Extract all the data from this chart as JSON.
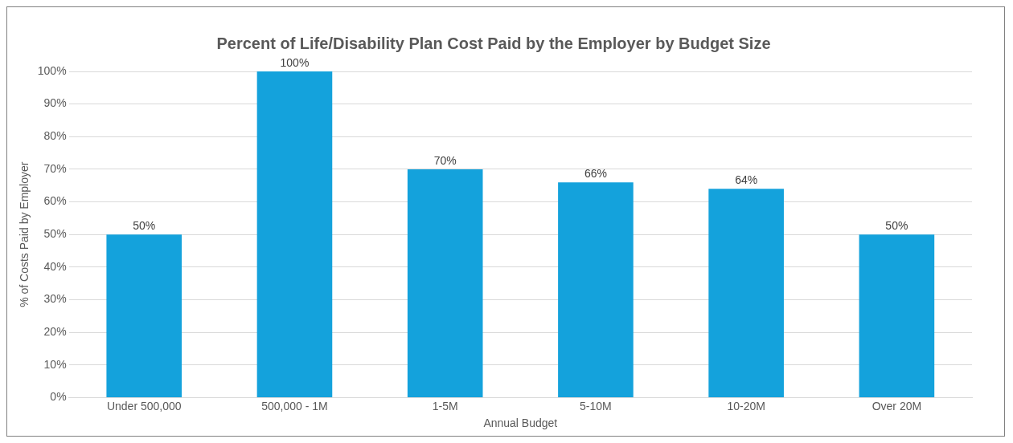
{
  "chart_data": {
    "type": "bar",
    "title": "Percent of Life/Disability Plan Cost Paid by the Employer by Budget Size",
    "xlabel": "Annual Budget",
    "ylabel": "% of Costs Paid by Employer",
    "categories": [
      "Under 500,000",
      "500,000 - 1M",
      "1-5M",
      "5-10M",
      "10-20M",
      "Over 20M"
    ],
    "values": [
      50,
      100,
      70,
      66,
      64,
      50
    ],
    "value_labels": [
      "50%",
      "100%",
      "70%",
      "66%",
      "64%",
      "50%"
    ],
    "color": "#14a2dc",
    "ylim": [
      0,
      100
    ],
    "yticks": [
      {
        "value": 0,
        "label": "0%"
      },
      {
        "value": 10,
        "label": "10%"
      },
      {
        "value": 20,
        "label": "20%"
      },
      {
        "value": 30,
        "label": "30%"
      },
      {
        "value": 40,
        "label": "40%"
      },
      {
        "value": 50,
        "label": "50%"
      },
      {
        "value": 60,
        "label": "60%"
      },
      {
        "value": 70,
        "label": "70%"
      },
      {
        "value": 80,
        "label": "80%"
      },
      {
        "value": 90,
        "label": "90%"
      },
      {
        "value": 100,
        "label": "100%"
      }
    ],
    "grid": "y"
  }
}
